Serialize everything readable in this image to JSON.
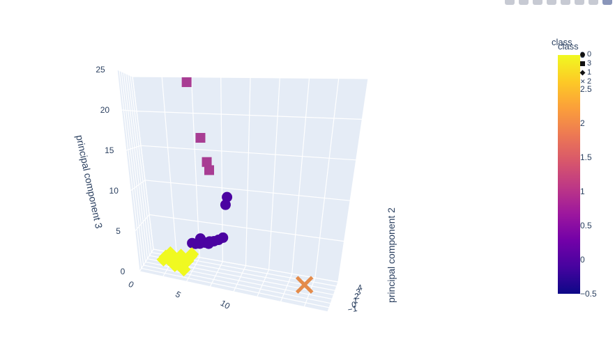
{
  "modebar": {
    "buttons": [
      "camera-icon",
      "zoom-icon",
      "pan-icon",
      "orbit-icon",
      "turntable-icon",
      "home-icon",
      "reset-icon",
      "logo-icon"
    ]
  },
  "legend": {
    "title_top": "class",
    "title_bottom": "class",
    "items": [
      "0",
      "3",
      "1",
      "2"
    ]
  },
  "colorbar": {
    "ticks": [
      "2.5",
      "2",
      "1.5",
      "1",
      "0.5",
      "0",
      "−0.5"
    ],
    "tick_values": [
      2.5,
      2,
      1.5,
      1,
      0.5,
      0,
      -0.5
    ],
    "top_tick": "3",
    "range": [
      -0.5,
      3
    ]
  },
  "chart_data": {
    "type": "scatter3d",
    "axes": {
      "x": {
        "ticks": [
          "0",
          "5",
          "10"
        ],
        "tick_values": [
          0,
          5,
          10
        ]
      },
      "y": {
        "title": "principal component 2",
        "ticks": [
          "−1",
          "0",
          "1",
          "2",
          "3",
          "4"
        ],
        "tick_values": [
          -1,
          0,
          1,
          2,
          3,
          4
        ]
      },
      "z": {
        "title": "principal component 3",
        "ticks": [
          "0",
          "5",
          "10",
          "15",
          "20",
          "25"
        ],
        "tick_values": [
          0,
          5,
          10,
          15,
          20,
          25
        ]
      }
    },
    "colorscale": [
      "#0d0887",
      "#46039f",
      "#7201a8",
      "#9c179e",
      "#bd3786",
      "#d8576b",
      "#ed7953",
      "#fb9f3a",
      "#fdca26",
      "#f0f921"
    ],
    "grid": true,
    "series": [
      {
        "class": 0,
        "symbol": "circle",
        "color": "#4b03a1",
        "points": [
          [
            9.0,
            1.0,
            10.0
          ],
          [
            8.8,
            1.1,
            9.0
          ],
          [
            8.5,
            0.8,
            5.0
          ],
          [
            8.0,
            0.9,
            4.6
          ],
          [
            7.5,
            1.0,
            4.3
          ],
          [
            7.0,
            1.2,
            4.1
          ],
          [
            6.5,
            1.1,
            3.9
          ],
          [
            6.0,
            1.0,
            3.7
          ],
          [
            6.0,
            1.4,
            4.2
          ],
          [
            5.5,
            1.2,
            3.5
          ],
          [
            5.2,
            1.0,
            3.6
          ],
          [
            7.0,
            0.7,
            4.0
          ]
        ]
      },
      {
        "class": 3,
        "symbol": "square",
        "color": "#a83d93",
        "points": [
          [
            5.5,
            1.5,
            24.0
          ],
          [
            6.5,
            1.5,
            17.0
          ],
          [
            7.0,
            1.5,
            14.0
          ],
          [
            7.2,
            1.5,
            13.0
          ]
        ]
      },
      {
        "class": 1,
        "symbol": "diamond",
        "color": "#f0f921",
        "points": [
          [
            2.0,
            1.0,
            0.8
          ],
          [
            2.5,
            1.2,
            0.9
          ],
          [
            3.0,
            1.4,
            0.7
          ],
          [
            3.5,
            1.1,
            1.0
          ],
          [
            4.0,
            1.3,
            1.2
          ],
          [
            4.5,
            1.2,
            1.1
          ],
          [
            3.0,
            0.8,
            1.3
          ],
          [
            2.8,
            1.0,
            1.8
          ],
          [
            3.8,
            1.5,
            1.5
          ],
          [
            4.8,
            1.6,
            1.6
          ],
          [
            3.2,
            0.9,
            0.4
          ],
          [
            4.2,
            0.6,
            0.2
          ],
          [
            5.0,
            1.4,
            2.0
          ],
          [
            2.2,
            1.3,
            1.1
          ]
        ]
      },
      {
        "class": 2,
        "symbol": "x",
        "color": "#e48b4a",
        "points": [
          [
            17.0,
            1.0,
            1.0
          ]
        ]
      }
    ]
  }
}
